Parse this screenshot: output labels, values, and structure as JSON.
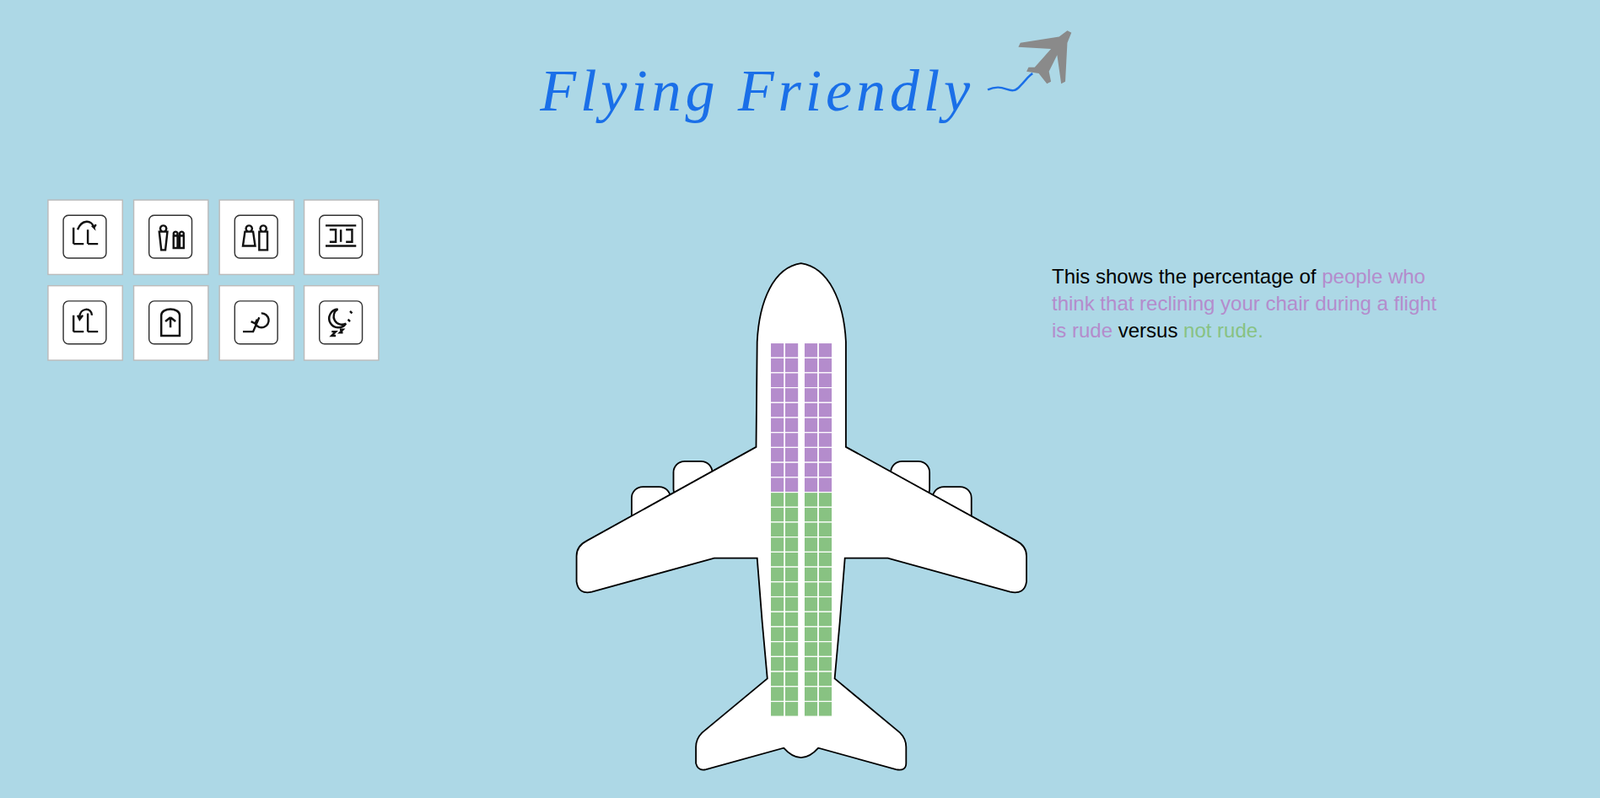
{
  "chart_data": {
    "type": "waffle",
    "title": "Flying Friendly",
    "annotations": [
      "This shows the percentage of",
      "versus"
    ],
    "series": [
      {
        "name": "people who think that reclining your chair during a flight is rude",
        "color": "#b48ccc",
        "values": [
          40
        ]
      },
      {
        "name": "not rude.",
        "color": "#88c282",
        "values": [
          60
        ]
      }
    ]
  }
}
